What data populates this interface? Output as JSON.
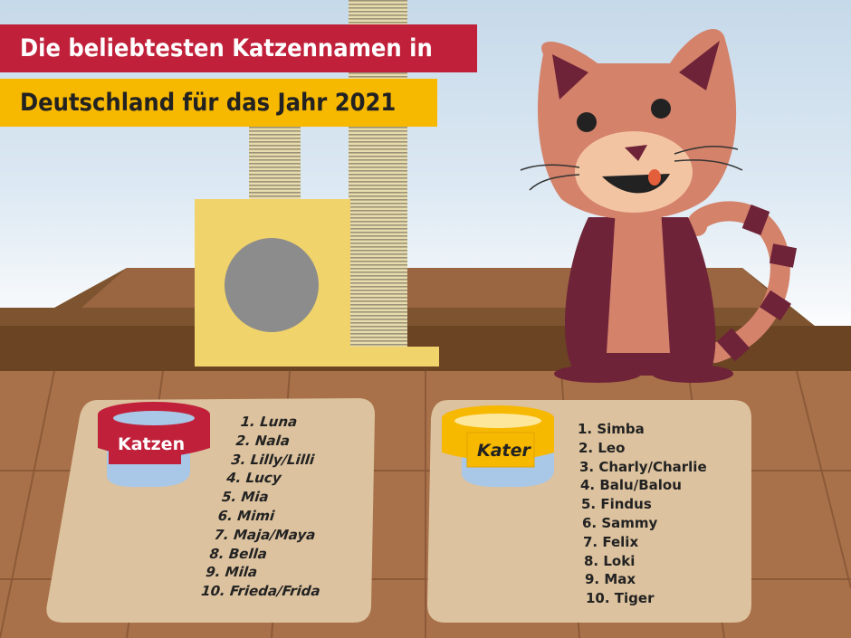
{
  "title": {
    "line1": "Die beliebtesten Katzennamen in",
    "line2": "Deutschland für das Jahr 2021"
  },
  "female": {
    "label": "Katzen",
    "color": "#c0203a",
    "names": [
      "1. Luna",
      "2. Nala",
      "3. Lilly/Lilli",
      "4. Lucy",
      "5. Mia",
      "6. Mimi",
      "7. Maja/Maya",
      "8. Bella",
      "9. Mila",
      "10. Frieda/Frida"
    ]
  },
  "male": {
    "label": "Kater",
    "color": "#f7b800",
    "names": [
      "1. Simba",
      "2. Leo",
      "3. Charly/Charlie",
      "4. Balu/Balou",
      "5. Findus",
      "6. Sammy",
      "7. Felix",
      "8. Loki",
      "9. Max",
      "10. Tiger"
    ]
  }
}
